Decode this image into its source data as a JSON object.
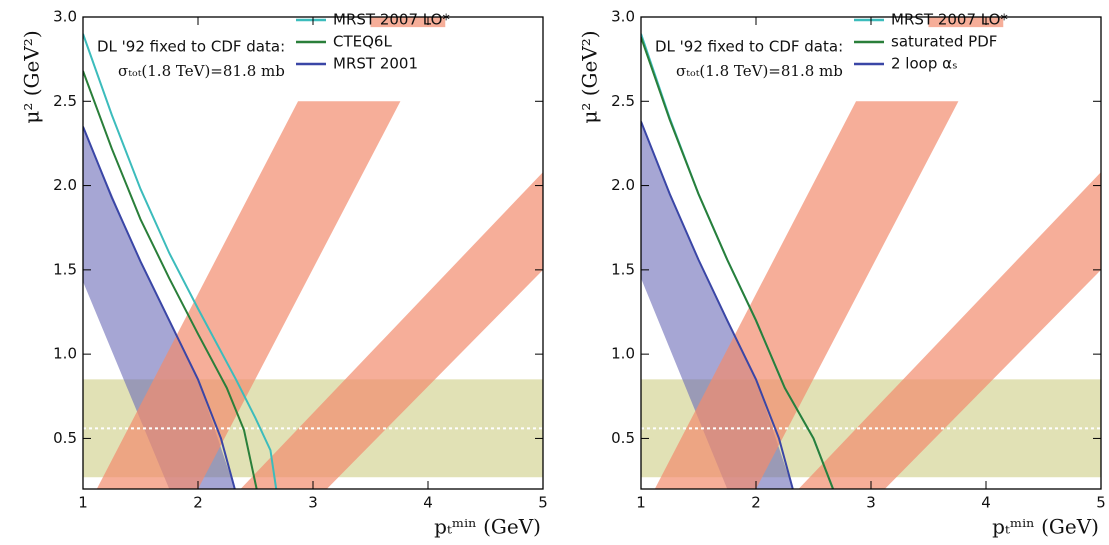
{
  "chart_data": [
    {
      "type": "line",
      "annotation": [
        "DL '92 fixed to CDF data:",
        "σₜₒₜ(1.8 TeV)=81.8 mb"
      ],
      "xlabel": "pₜᵐⁱⁿ (GeV)",
      "ylabel": "μ² (GeV²)",
      "xlim": [
        1,
        5
      ],
      "ylim": [
        0.2,
        3.0
      ],
      "xticks": [
        1,
        2,
        3,
        4,
        5
      ],
      "yticks": [
        0.5,
        {
          "value": 1,
          "label": "1.0"
        },
        1.5,
        {
          "value": 2,
          "label": "2.0"
        },
        2.5,
        {
          "value": 3,
          "label": "3.0"
        }
      ],
      "bands": [
        {
          "color": "#c8c878",
          "x": [
            1,
            5,
            5,
            1
          ],
          "values": [
            0.27,
            0.27,
            0.85,
            0.85
          ]
        },
        {
          "color": "#6a6ab8",
          "x": [
            1,
            1,
            1.5,
            2,
            2.32,
            1.75
          ],
          "values": [
            1.43,
            2.35,
            1.55,
            0.85,
            0.2,
            0.2
          ]
        },
        {
          "color": "#f28c6e",
          "x": [
            1.12,
            2.87,
            3.76,
            2.0
          ],
          "values": [
            0.2,
            2.5,
            2.5,
            0.2
          ]
        },
        {
          "color": "#f28c6e",
          "x": [
            2.37,
            5,
            5,
            3.12
          ],
          "values": [
            0.2,
            2.08,
            1.5,
            0.2
          ]
        },
        {
          "color": "#f28c6e",
          "x": [
            3.5,
            4.15,
            4.15,
            3.5
          ],
          "values": [
            2.94,
            2.94,
            3.0,
            3.0
          ]
        }
      ],
      "reference_line": 0.56,
      "series": [
        {
          "name": "MRST 2007 LO*",
          "color": "#3cbcbc",
          "x": [
            1,
            1.25,
            1.5,
            1.75,
            2,
            2.33,
            2.5,
            2.63,
            2.68
          ],
          "values": [
            2.9,
            2.42,
            1.98,
            1.6,
            1.27,
            0.85,
            0.62,
            0.43,
            0.2
          ]
        },
        {
          "name": "CTEQ6L",
          "color": "#2a7f3a",
          "x": [
            1,
            1.25,
            1.5,
            1.75,
            2,
            2.25,
            2.4,
            2.51
          ],
          "values": [
            2.68,
            2.22,
            1.8,
            1.45,
            1.12,
            0.8,
            0.55,
            0.2
          ]
        },
        {
          "name": "MRST 2001",
          "color": "#3a46a6",
          "x": [
            1,
            1.25,
            1.5,
            1.75,
            2,
            2.2,
            2.32
          ],
          "values": [
            2.35,
            1.93,
            1.55,
            1.2,
            0.85,
            0.5,
            0.2
          ]
        }
      ]
    },
    {
      "type": "line",
      "annotation": [
        "DL '92 fixed to CDF data:",
        "σₜₒₜ(1.8 TeV)=81.8 mb"
      ],
      "xlabel": "pₜᵐⁱⁿ (GeV)",
      "ylabel": "μ² (GeV²)",
      "xlim": [
        1,
        5
      ],
      "ylim": [
        0.2,
        3.0
      ],
      "xticks": [
        1,
        2,
        3,
        4,
        5
      ],
      "yticks": [
        0.5,
        {
          "value": 1,
          "label": "1.0"
        },
        1.5,
        {
          "value": 2,
          "label": "2.0"
        },
        2.5,
        {
          "value": 3,
          "label": "3.0"
        }
      ],
      "bands": [
        {
          "color": "#c8c878",
          "x": [
            1,
            5,
            5,
            1
          ],
          "values": [
            0.27,
            0.27,
            0.85,
            0.85
          ]
        },
        {
          "color": "#6a6ab8",
          "x": [
            1,
            1,
            1.5,
            2,
            2.32,
            1.75
          ],
          "values": [
            1.45,
            2.38,
            1.55,
            0.85,
            0.2,
            0.2
          ]
        },
        {
          "color": "#f28c6e",
          "x": [
            1.12,
            2.87,
            3.76,
            2.0
          ],
          "values": [
            0.2,
            2.5,
            2.5,
            0.2
          ]
        },
        {
          "color": "#f28c6e",
          "x": [
            2.37,
            5,
            5,
            3.12
          ],
          "values": [
            0.2,
            2.08,
            1.5,
            0.2
          ]
        },
        {
          "color": "#f28c6e",
          "x": [
            3.5,
            4.15,
            4.15,
            3.5
          ],
          "values": [
            2.94,
            2.94,
            3.0,
            3.0
          ]
        }
      ],
      "reference_line": 0.56,
      "series": [
        {
          "name": "MRST 2007 LO*",
          "color": "#3cbcbc",
          "x": [
            1,
            1.25,
            1.5,
            1.75,
            2,
            2.25,
            2.5,
            2.67
          ],
          "values": [
            2.9,
            2.4,
            1.95,
            1.56,
            1.2,
            0.8,
            0.5,
            0.2
          ]
        },
        {
          "name": "saturated PDF",
          "color": "#2a7f3a",
          "x": [
            1,
            1.25,
            1.5,
            1.75,
            2,
            2.25,
            2.5,
            2.67
          ],
          "values": [
            2.88,
            2.39,
            1.95,
            1.56,
            1.2,
            0.8,
            0.5,
            0.2
          ]
        },
        {
          "name": "2 loop αₛ",
          "color": "#3a46a6",
          "x": [
            1,
            1.25,
            1.5,
            1.75,
            2,
            2.2,
            2.32
          ],
          "values": [
            2.38,
            1.95,
            1.56,
            1.2,
            0.85,
            0.5,
            0.2
          ]
        }
      ]
    }
  ]
}
